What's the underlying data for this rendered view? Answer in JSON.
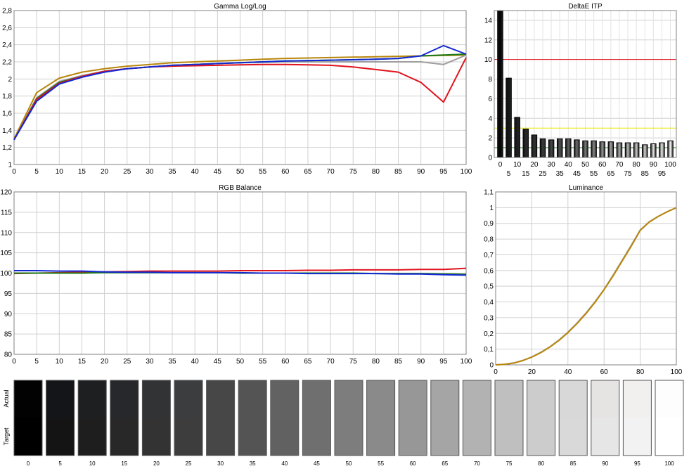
{
  "chart_data": [
    {
      "type": "line",
      "title": "Gamma Log/Log",
      "xlim": [
        0,
        100
      ],
      "ylim": [
        1,
        2.8
      ],
      "x_ticks": [
        0,
        5,
        10,
        15,
        20,
        25,
        30,
        35,
        40,
        45,
        50,
        55,
        60,
        65,
        70,
        75,
        80,
        85,
        90,
        95,
        100
      ],
      "y_ticks": [
        1,
        1.2,
        1.4,
        1.6,
        1.8,
        2,
        2.2,
        2.4,
        2.6,
        2.8
      ],
      "y_tick_labels": [
        "1",
        "1,2",
        "1,4",
        "1,6",
        "1,8",
        "2",
        "2,2",
        "2,4",
        "2,6",
        "2,8"
      ],
      "grid": true,
      "x": [
        0,
        5,
        10,
        15,
        20,
        25,
        30,
        35,
        40,
        45,
        50,
        55,
        60,
        65,
        70,
        75,
        80,
        85,
        90,
        95,
        100
      ],
      "series": [
        {
          "color": "#b8860b",
          "values": [
            1.3,
            1.84,
            2.01,
            2.08,
            2.12,
            2.15,
            2.17,
            2.19,
            2.2,
            2.21,
            2.22,
            2.23,
            2.24,
            2.245,
            2.25,
            2.255,
            2.26,
            2.265,
            2.27,
            2.275,
            2.28
          ]
        },
        {
          "color": "#9e9e9e",
          "values": [
            1.29,
            1.78,
            1.97,
            2.04,
            2.09,
            2.12,
            2.14,
            2.16,
            2.17,
            2.18,
            2.19,
            2.195,
            2.2,
            2.2,
            2.2,
            2.2,
            2.2,
            2.2,
            2.2,
            2.17,
            2.28
          ]
        },
        {
          "color": "#1a7a1a",
          "values": [
            1.29,
            1.77,
            1.96,
            2.03,
            2.09,
            2.12,
            2.14,
            2.16,
            2.17,
            2.18,
            2.19,
            2.2,
            2.21,
            2.215,
            2.22,
            2.225,
            2.23,
            2.24,
            2.27,
            2.28,
            2.29
          ]
        },
        {
          "color": "#e0141e",
          "values": [
            1.29,
            1.76,
            1.95,
            2.03,
            2.09,
            2.12,
            2.14,
            2.15,
            2.155,
            2.16,
            2.165,
            2.17,
            2.17,
            2.165,
            2.16,
            2.14,
            2.11,
            2.08,
            1.96,
            1.73,
            2.25
          ]
        },
        {
          "color": "#1428d2",
          "values": [
            1.29,
            1.74,
            1.94,
            2.02,
            2.08,
            2.12,
            2.14,
            2.16,
            2.17,
            2.18,
            2.19,
            2.2,
            2.21,
            2.215,
            2.22,
            2.225,
            2.23,
            2.24,
            2.27,
            2.39,
            2.29
          ]
        }
      ]
    },
    {
      "type": "bar",
      "title": "DeltaE ITP",
      "categories": [
        "0",
        "5",
        "10",
        "15",
        "20",
        "25",
        "30",
        "35",
        "40",
        "45",
        "50",
        "55",
        "60",
        "65",
        "70",
        "75",
        "80",
        "85",
        "90",
        "95",
        "100"
      ],
      "values": [
        15,
        8.1,
        4.1,
        2.9,
        2.3,
        1.9,
        1.8,
        1.9,
        1.9,
        1.8,
        1.7,
        1.7,
        1.6,
        1.6,
        1.5,
        1.5,
        1.5,
        1.3,
        1.4,
        1.5,
        1.7
      ],
      "ylim": [
        0,
        15
      ],
      "y_ticks": [
        0,
        2,
        4,
        6,
        8,
        10,
        12,
        14
      ],
      "threshold_lines": [
        {
          "value": 10,
          "color": "#e0141e"
        },
        {
          "value": 3,
          "color": "#e6e600"
        },
        {
          "value": 1,
          "color": "#1a7a1a"
        }
      ],
      "grid": true
    },
    {
      "type": "line",
      "title": "RGB Balance",
      "xlim": [
        0,
        100
      ],
      "ylim": [
        80,
        120
      ],
      "x_ticks": [
        0,
        5,
        10,
        15,
        20,
        25,
        30,
        35,
        40,
        45,
        50,
        55,
        60,
        65,
        70,
        75,
        80,
        85,
        90,
        95,
        100
      ],
      "y_ticks": [
        80,
        85,
        90,
        95,
        100,
        105,
        110,
        115,
        120
      ],
      "grid": true,
      "x": [
        0,
        5,
        10,
        15,
        20,
        25,
        30,
        35,
        40,
        45,
        50,
        55,
        60,
        65,
        70,
        75,
        80,
        85,
        90,
        95,
        100
      ],
      "series": [
        {
          "color": "#e0141e",
          "values": [
            99.9,
            100.0,
            100.1,
            100.2,
            100.3,
            100.4,
            100.5,
            100.5,
            100.5,
            100.5,
            100.6,
            100.6,
            100.6,
            100.7,
            100.7,
            100.8,
            100.8,
            100.8,
            100.9,
            100.9,
            101.2
          ]
        },
        {
          "color": "#1a7a1a",
          "values": [
            100.0,
            100.0,
            100.0,
            100.0,
            100.1,
            100.1,
            100.1,
            100.1,
            100.1,
            100.1,
            100.0,
            100.0,
            100.0,
            100.0,
            100.0,
            100.0,
            99.9,
            99.9,
            99.9,
            99.8,
            99.7
          ]
        },
        {
          "color": "#1428d2",
          "values": [
            100.6,
            100.6,
            100.5,
            100.5,
            100.3,
            100.2,
            100.2,
            100.1,
            100.1,
            100.1,
            100.1,
            100.0,
            100.0,
            99.9,
            99.9,
            99.9,
            99.9,
            99.8,
            99.8,
            99.6,
            99.5
          ]
        }
      ]
    },
    {
      "type": "line",
      "title": "Luminance",
      "xlim": [
        0,
        100
      ],
      "ylim": [
        0,
        1.1
      ],
      "x_ticks": [
        0,
        20,
        40,
        60,
        80,
        100
      ],
      "y_ticks": [
        0,
        0.1,
        0.2,
        0.3,
        0.4,
        0.5,
        0.6,
        0.7,
        0.8,
        0.9,
        1,
        1.1
      ],
      "y_tick_labels": [
        "0",
        "0,1",
        "0,2",
        "0,3",
        "0,4",
        "0,5",
        "0,6",
        "0,7",
        "0,8",
        "0,9",
        "1",
        "1,1"
      ],
      "grid": true,
      "x": [
        0,
        5,
        10,
        15,
        20,
        25,
        30,
        35,
        40,
        45,
        50,
        55,
        60,
        65,
        70,
        75,
        80,
        85,
        90,
        95,
        100
      ],
      "series": [
        {
          "color": "#a0a0a0",
          "values": [
            0,
            0.003,
            0.012,
            0.028,
            0.05,
            0.08,
            0.115,
            0.158,
            0.208,
            0.265,
            0.33,
            0.402,
            0.48,
            0.57,
            0.665,
            0.76,
            0.858,
            0.91,
            0.945,
            0.975,
            1.0
          ]
        },
        {
          "color": "#b8860b",
          "values": [
            0,
            0.003,
            0.011,
            0.027,
            0.049,
            0.078,
            0.113,
            0.155,
            0.205,
            0.262,
            0.326,
            0.398,
            0.478,
            0.565,
            0.66,
            0.755,
            0.855,
            0.908,
            0.944,
            0.974,
            1.0
          ]
        }
      ]
    }
  ],
  "swatches": {
    "row_labels": {
      "actual": "Actual",
      "target": "Target"
    },
    "items": [
      {
        "label": "0",
        "actual": "#020202",
        "target": "#000000"
      },
      {
        "label": "5",
        "actual": "#141518",
        "target": "#141414"
      },
      {
        "label": "10",
        "actual": "#1e1f21",
        "target": "#1e1e1e"
      },
      {
        "label": "15",
        "actual": "#27282b",
        "target": "#282828"
      },
      {
        "label": "20",
        "actual": "#323334",
        "target": "#333333"
      },
      {
        "label": "25",
        "actual": "#3c3d3e",
        "target": "#3d3d3d"
      },
      {
        "label": "30",
        "actual": "#474748",
        "target": "#474747"
      },
      {
        "label": "35",
        "actual": "#545455",
        "target": "#545454"
      },
      {
        "label": "40",
        "actual": "#626262",
        "target": "#616161"
      },
      {
        "label": "45",
        "actual": "#6f6f6f",
        "target": "#6f6f6f"
      },
      {
        "label": "50",
        "actual": "#7d7d7d",
        "target": "#7d7d7d"
      },
      {
        "label": "55",
        "actual": "#8a8a8a",
        "target": "#8a8a8a"
      },
      {
        "label": "60",
        "actual": "#979797",
        "target": "#979797"
      },
      {
        "label": "65",
        "actual": "#a5a5a5",
        "target": "#a5a5a5"
      },
      {
        "label": "70",
        "actual": "#b2b2b2",
        "target": "#b2b2b2"
      },
      {
        "label": "75",
        "actual": "#bfbfbf",
        "target": "#bfbfbf"
      },
      {
        "label": "80",
        "actual": "#cccccc",
        "target": "#cccccc"
      },
      {
        "label": "85",
        "actual": "#d9d8d8",
        "target": "#d9d9d9"
      },
      {
        "label": "90",
        "actual": "#e6e3e3",
        "target": "#e6e6e6"
      },
      {
        "label": "95",
        "actual": "#f2f0ee",
        "target": "#f2f2f2"
      },
      {
        "label": "100",
        "actual": "#fdfdfd",
        "target": "#ffffff"
      }
    ]
  }
}
